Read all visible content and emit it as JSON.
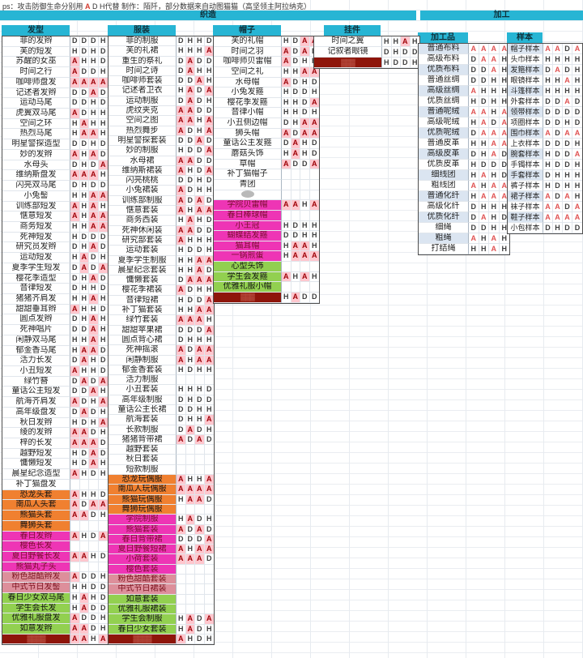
{
  "note": {
    "prefix": "ps：攻击防御生命分别用 ",
    "a": "A",
    "rest": " D H代替 制作：陌阡，部分数据来自动图猫猫（高坚领主阿拉纳克）"
  },
  "banners": {
    "weaving": "织造",
    "processing": "加工"
  },
  "tables": [
    {
      "id": "hair",
      "header": "发型",
      "section": "weave",
      "rows": [
        {
          "n": "菲的发辫",
          "v": "DDDH",
          "s": ""
        },
        {
          "n": "芙的短发",
          "v": "HDHD",
          "s": ""
        },
        {
          "n": "苏醒的女巫",
          "v": "AHHD",
          "s": ""
        },
        {
          "n": "时间之行",
          "v": "ADDH",
          "s": ""
        },
        {
          "n": "咖啡师盘发",
          "v": "AAAA",
          "s": ""
        },
        {
          "n": "记述者发辫",
          "v": "DDAD",
          "s": ""
        },
        {
          "n": "运动马尾",
          "v": "DDHD",
          "s": ""
        },
        {
          "n": "虎翼双马尾",
          "v": "ADHH",
          "s": ""
        },
        {
          "n": "空间之环",
          "v": "HAHH",
          "s": ""
        },
        {
          "n": "热烈马尾",
          "v": "HAAH",
          "s": ""
        },
        {
          "n": "明星警探造型",
          "v": "DDHD",
          "s": ""
        },
        {
          "n": "妙的发辫",
          "v": "AHAD",
          "s": ""
        },
        {
          "n": "水母头",
          "v": "DHDA",
          "s": ""
        },
        {
          "n": "维纳斯盘发",
          "v": "AAAH",
          "s": ""
        },
        {
          "n": "闪亮双马尾",
          "v": "DHDD",
          "s": ""
        },
        {
          "n": "小兔髻",
          "v": "HHAA",
          "s": ""
        },
        {
          "n": "训练部短发",
          "v": "AHAH",
          "s": ""
        },
        {
          "n": "惬意短发",
          "v": "AHAA",
          "s": ""
        },
        {
          "n": "商务短发",
          "v": "HHAA",
          "s": ""
        },
        {
          "n": "死神短发",
          "v": "HDDD",
          "s": ""
        },
        {
          "n": "研究员发辫",
          "v": "DHAD",
          "s": ""
        },
        {
          "n": "运动短发",
          "v": "HADH",
          "s": ""
        },
        {
          "n": "夏季学生短发",
          "v": "DADA",
          "s": ""
        },
        {
          "n": "樱花季造型",
          "v": "DHAD",
          "s": ""
        },
        {
          "n": "音律短发",
          "v": "DHHD",
          "s": ""
        },
        {
          "n": "猪猪齐肩发",
          "v": "HHAH",
          "s": ""
        },
        {
          "n": "甜甜垂耳辫",
          "v": "AHHD",
          "s": ""
        },
        {
          "n": "圆点发辫",
          "v": "DHAH",
          "s": ""
        },
        {
          "n": "死神唱片",
          "v": "DDAH",
          "s": ""
        },
        {
          "n": "闲静双马尾",
          "v": "HHAH",
          "s": ""
        },
        {
          "n": "郁金香马尾",
          "v": "HAAD",
          "s": ""
        },
        {
          "n": "活力长发",
          "v": "DAHD",
          "s": ""
        },
        {
          "n": "小丑短发",
          "v": "AHHD",
          "s": ""
        },
        {
          "n": "绿竹簪",
          "v": "DADA",
          "s": ""
        },
        {
          "n": "童话公主短发",
          "v": "DDAH",
          "s": ""
        },
        {
          "n": "航海齐肩发",
          "v": "ADHA",
          "s": ""
        },
        {
          "n": "高年级盘发",
          "v": "DADH",
          "s": ""
        },
        {
          "n": "秋日发辫",
          "v": "HDHA",
          "s": ""
        },
        {
          "n": "绫的发辫",
          "v": "AADH",
          "s": ""
        },
        {
          "n": "梓的长发",
          "v": "AAAD",
          "s": ""
        },
        {
          "n": "越野短发",
          "v": "HDAD",
          "s": ""
        },
        {
          "n": "慵懒短发",
          "v": "HDAH",
          "s": ""
        },
        {
          "n": "晨星纪念造型",
          "v": "AHDH",
          "s": ""
        },
        {
          "n": "补丁猫盘发",
          "v": "",
          "s": ""
        },
        {
          "n": "恐龙头套",
          "v": "AHHD",
          "s": "orange"
        },
        {
          "n": "南瓜人头套",
          "v": "ADAA",
          "s": "orange"
        },
        {
          "n": "熊猫头套",
          "v": "AADH",
          "s": "orange"
        },
        {
          "n": "舞狮头套",
          "v": "",
          "s": "orange"
        },
        {
          "n": "春日发辫",
          "v": "AHDA",
          "s": "magenta"
        },
        {
          "n": "樱色长发",
          "v": "",
          "s": "magenta"
        },
        {
          "n": "夏日野餐长发",
          "v": "AAHD",
          "s": "magenta"
        },
        {
          "n": "熊猫丸子头",
          "v": "",
          "s": "magenta"
        },
        {
          "n": "粉色甜酷辫发",
          "v": "ADDH",
          "s": "rose"
        },
        {
          "n": "中式节日发髻",
          "v": "HHDD",
          "s": "rose"
        },
        {
          "n": "春日少女双马尾",
          "v": "HAHD",
          "s": "green"
        },
        {
          "n": "学生会长发",
          "v": "HADD",
          "s": "green"
        },
        {
          "n": "优雅礼服盘发",
          "v": "ADDH",
          "s": "green"
        },
        {
          "n": "如意发辫",
          "v": "AADH",
          "s": "green"
        },
        {
          "n": "▓▓▓▓",
          "v": "AAHA",
          "s": "darkred"
        }
      ]
    },
    {
      "id": "clothes",
      "header": "服装",
      "section": "weave",
      "rows": [
        {
          "n": "菲的制服",
          "v": "DHHD",
          "s": ""
        },
        {
          "n": "芙的礼裙",
          "v": "HHHA",
          "s": ""
        },
        {
          "n": "重生的祭礼",
          "v": "DADD",
          "s": ""
        },
        {
          "n": "时间之诗",
          "v": "DAHH",
          "s": ""
        },
        {
          "n": "咖啡师套装",
          "v": "DDAH",
          "s": ""
        },
        {
          "n": "记述者卫衣",
          "v": "HADA",
          "s": ""
        },
        {
          "n": "运动制服",
          "v": "DADH",
          "s": ""
        },
        {
          "n": "虎纹夹克",
          "v": "AADD",
          "s": ""
        },
        {
          "n": "空间之图",
          "v": "AAHA",
          "s": ""
        },
        {
          "n": "热烈舞步",
          "v": "ADHA",
          "s": ""
        },
        {
          "n": "明星警探套装",
          "v": "DDAD",
          "s": ""
        },
        {
          "n": "妙的制服",
          "v": "HDDA",
          "s": ""
        },
        {
          "n": "水母裙",
          "v": "AADD",
          "s": ""
        },
        {
          "n": "维纳斯裙装",
          "v": "AHDA",
          "s": ""
        },
        {
          "n": "闪亮桃桃",
          "v": "DDHD",
          "s": ""
        },
        {
          "n": "小兔裙装",
          "v": "ADHH",
          "s": ""
        },
        {
          "n": "训练部制服",
          "v": "ADAD",
          "s": ""
        },
        {
          "n": "惬意套装",
          "v": "AHAA",
          "s": ""
        },
        {
          "n": "商务西装",
          "v": "HAHD",
          "s": ""
        },
        {
          "n": "死神休闲装",
          "v": "AADD",
          "s": ""
        },
        {
          "n": "研究部套装",
          "v": "AHHH",
          "s": ""
        },
        {
          "n": "运动套装",
          "v": "HDDH",
          "s": ""
        },
        {
          "n": "夏季学生制服",
          "v": "HHAA",
          "s": ""
        },
        {
          "n": "晨星纪念套装",
          "v": "HHAD",
          "s": ""
        },
        {
          "n": "慵懒套装",
          "v": "DAAA",
          "s": ""
        },
        {
          "n": "樱花季裙装",
          "v": "ADHH",
          "s": ""
        },
        {
          "n": "音律短裙",
          "v": "HDDA",
          "s": ""
        },
        {
          "n": "补丁猫套装",
          "v": "HHAA",
          "s": ""
        },
        {
          "n": "绿竹套装",
          "v": "AAAH",
          "s": ""
        },
        {
          "n": "甜甜苹果裙",
          "v": "DDDA",
          "s": ""
        },
        {
          "n": "圆点背心裙",
          "v": "DHHH",
          "s": ""
        },
        {
          "n": "死神摇滚",
          "v": "ADAA",
          "s": ""
        },
        {
          "n": "闲静制服",
          "v": "AHAA",
          "s": ""
        },
        {
          "n": "郁金香套装",
          "v": "HDHH",
          "s": ""
        },
        {
          "n": "活力制服",
          "v": "",
          "s": ""
        },
        {
          "n": "小丑套装",
          "v": "HHHD",
          "s": ""
        },
        {
          "n": "高年级制服",
          "v": "DHDD",
          "s": ""
        },
        {
          "n": "童话公主长裙",
          "v": "DDHH",
          "s": ""
        },
        {
          "n": "航海套装",
          "v": "DHHA",
          "s": ""
        },
        {
          "n": "长款制服",
          "v": "DADH",
          "s": ""
        },
        {
          "n": "猪猪背带裙",
          "v": "ADAD",
          "s": ""
        },
        {
          "n": "越野套装",
          "v": "",
          "s": ""
        },
        {
          "n": "秋日套装",
          "v": "",
          "s": ""
        },
        {
          "n": "短款制服",
          "v": "",
          "s": ""
        },
        {
          "n": "恐龙玩偶服",
          "v": "AHHA",
          "s": "orange"
        },
        {
          "n": "南瓜人玩偶服",
          "v": "AAAA",
          "s": "orange"
        },
        {
          "n": "熊猫玩偶服",
          "v": "HAAD",
          "s": "orange"
        },
        {
          "n": "舞狮玩偶服",
          "v": "",
          "s": "orange"
        },
        {
          "n": "学院制服",
          "v": "HADH",
          "s": "magenta"
        },
        {
          "n": "熊猫套装",
          "v": "ADAD",
          "s": "magenta"
        },
        {
          "n": "春日背带裙",
          "v": "DDDA",
          "s": "magenta"
        },
        {
          "n": "夏日野餐短裙",
          "v": "AHAA",
          "s": "magenta"
        },
        {
          "n": "小荷套装",
          "v": "AAAD",
          "s": "magenta"
        },
        {
          "n": "樱色套装",
          "v": "",
          "s": "magenta"
        },
        {
          "n": "粉色甜酷套装",
          "v": "",
          "s": "rose"
        },
        {
          "n": "中式节日裙装",
          "v": "",
          "s": "rose"
        },
        {
          "n": "如意套装",
          "v": "",
          "s": "green"
        },
        {
          "n": "优雅礼服裙装",
          "v": "",
          "s": "green"
        },
        {
          "n": "学生会制服",
          "v": "HADA",
          "s": "green"
        },
        {
          "n": "春日少女套装",
          "v": "HADH",
          "s": "green"
        },
        {
          "n": "▓▓▓▓",
          "v": "AHDH",
          "s": "darkred"
        }
      ]
    },
    {
      "id": "hats",
      "header": "帽子",
      "section": "weave",
      "rows": [
        {
          "n": "芙的礼帽",
          "v": "HDAA",
          "s": ""
        },
        {
          "n": "时间之羽",
          "v": "ADAD",
          "s": ""
        },
        {
          "n": "咖啡师贝雷帽",
          "v": "ADHH",
          "s": ""
        },
        {
          "n": "空间之礼",
          "v": "HHAA",
          "s": ""
        },
        {
          "n": "水母帽",
          "v": "ADHD",
          "s": ""
        },
        {
          "n": "小兔发箍",
          "v": "HDDH",
          "s": ""
        },
        {
          "n": "樱花季发箍",
          "v": "HHDA",
          "s": ""
        },
        {
          "n": "音律小帽",
          "v": "HHDH",
          "s": ""
        },
        {
          "n": "小丑侧边帽",
          "v": "DHAA",
          "s": ""
        },
        {
          "n": "狮头帽",
          "v": "ADAA",
          "s": ""
        },
        {
          "n": "童话公主发箍",
          "v": "DAHD",
          "s": ""
        },
        {
          "n": "蘑菇头饰",
          "v": "HAHD",
          "s": ""
        },
        {
          "n": "草帽",
          "v": "ADDA",
          "s": ""
        },
        {
          "n": "补丁猫帽子",
          "v": "",
          "s": ""
        },
        {
          "n": "青团",
          "v": "",
          "s": ""
        },
        {
          "n": "",
          "v": "",
          "s": "blob"
        },
        {
          "n": "学院贝雷帽",
          "v": "AAHA",
          "s": "magenta"
        },
        {
          "n": "春日棒球帽",
          "v": "",
          "s": "magenta"
        },
        {
          "n": "小王冠",
          "v": "HDHH",
          "s": "magenta"
        },
        {
          "n": "蝴蝶结发箍",
          "v": "DDHH",
          "s": "magenta"
        },
        {
          "n": "猫耳帽",
          "v": "HAAH",
          "s": "magenta"
        },
        {
          "n": "一锅煎蛋",
          "v": "HAAA",
          "s": "magenta"
        },
        {
          "n": "心型头饰",
          "v": "",
          "s": "green"
        },
        {
          "n": "学生会发箍",
          "v": "AHAH",
          "s": "green"
        },
        {
          "n": "优雅礼服小帽",
          "v": "",
          "s": "green"
        },
        {
          "n": "▓▓▓",
          "v": "HADD",
          "s": "darkred"
        }
      ]
    },
    {
      "id": "pend",
      "header": "挂件",
      "section": "weave",
      "rows": [
        {
          "n": "时间之翼",
          "v": "HHAH",
          "s": ""
        },
        {
          "n": "记叙者眼镜",
          "v": "DHDD",
          "s": ""
        },
        {
          "n": "▓▓▓",
          "v": "HDDH",
          "s": "darkred"
        }
      ]
    },
    {
      "id": "goods",
      "header": "加工品",
      "section": "proc",
      "alt": true,
      "rows": [
        {
          "n": "普通布料",
          "v": "AAAA",
          "s": ""
        },
        {
          "n": "高级布料",
          "v": "DAAH",
          "s": ""
        },
        {
          "n": "优质布料",
          "v": "DDAH",
          "s": ""
        },
        {
          "n": "普通丝绸",
          "v": "DDHH",
          "s": ""
        },
        {
          "n": "高级丝绸",
          "v": "AHHH",
          "s": ""
        },
        {
          "n": "优质丝绸",
          "v": "HDHH",
          "s": ""
        },
        {
          "n": "普通呢绒",
          "v": "AAHA",
          "s": ""
        },
        {
          "n": "高级呢绒",
          "v": "HADA",
          "s": ""
        },
        {
          "n": "优质呢绒",
          "v": "DAAA",
          "s": ""
        },
        {
          "n": "普通皮革",
          "v": "HHAA",
          "s": ""
        },
        {
          "n": "高级皮革",
          "v": "DHAD",
          "s": ""
        },
        {
          "n": "优质皮革",
          "v": "HDDD",
          "s": ""
        },
        {
          "n": "细线团",
          "v": "HAHD",
          "s": ""
        },
        {
          "n": "粗线团",
          "v": "AHAA",
          "s": ""
        },
        {
          "n": "普通化纤",
          "v": "HAAA",
          "s": ""
        },
        {
          "n": "高级化纤",
          "v": "DHHH",
          "s": ""
        },
        {
          "n": "优质化纤",
          "v": "DAHD",
          "s": ""
        },
        {
          "n": "细绳",
          "v": "DDHH",
          "s": ""
        },
        {
          "n": "粗绳",
          "v": "AHAH",
          "s": ""
        },
        {
          "n": "打结绳",
          "v": "HHAH",
          "s": ""
        }
      ]
    },
    {
      "id": "samples",
      "header": "样本",
      "section": "proc",
      "alt": true,
      "rows": [
        {
          "n": "帽子样本",
          "v": "AADA",
          "s": ""
        },
        {
          "n": "头巾样本",
          "v": "HHHH",
          "s": ""
        },
        {
          "n": "发箍样本",
          "v": "DADH",
          "s": ""
        },
        {
          "n": "眼镜样本",
          "v": "HHAH",
          "s": ""
        },
        {
          "n": "斗篷样本",
          "v": "HHHH",
          "s": ""
        },
        {
          "n": "外套样本",
          "v": "DDAD",
          "s": ""
        },
        {
          "n": "领带样本",
          "v": "DDDD",
          "s": ""
        },
        {
          "n": "项圈样本",
          "v": "DDHD",
          "s": ""
        },
        {
          "n": "围巾样本",
          "v": "ADAA",
          "s": ""
        },
        {
          "n": "上衣样本",
          "v": "DDDH",
          "s": ""
        },
        {
          "n": "腕套样本",
          "v": "HDDA",
          "s": ""
        },
        {
          "n": "手镯样本",
          "v": "HDDH",
          "s": ""
        },
        {
          "n": "手套样本",
          "v": "DHHH",
          "s": ""
        },
        {
          "n": "裤子样本",
          "v": "HDHH",
          "s": ""
        },
        {
          "n": "裙子样本",
          "v": "ADAH",
          "s": ""
        },
        {
          "n": "袜子样本",
          "v": "AADA",
          "s": ""
        },
        {
          "n": "鞋子样本",
          "v": "AAAA",
          "s": ""
        },
        {
          "n": "小包样本",
          "v": "DHDD",
          "s": ""
        }
      ]
    }
  ]
}
